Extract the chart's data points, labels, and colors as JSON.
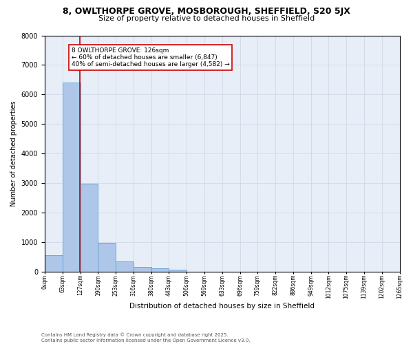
{
  "title1": "8, OWLTHORPE GROVE, MOSBOROUGH, SHEFFIELD, S20 5JX",
  "title2": "Size of property relative to detached houses in Sheffield",
  "xlabel": "Distribution of detached houses by size in Sheffield",
  "ylabel": "Number of detached properties",
  "bar_edges": [
    0,
    63,
    127,
    190,
    253,
    316,
    380,
    443,
    506,
    569,
    633,
    696,
    759,
    822,
    886,
    949,
    1012,
    1075,
    1139,
    1202,
    1265
  ],
  "bar_heights": [
    550,
    6400,
    2980,
    970,
    350,
    160,
    105,
    65,
    0,
    0,
    0,
    0,
    0,
    0,
    0,
    0,
    0,
    0,
    0,
    0
  ],
  "bar_color": "#aec6e8",
  "bar_edgecolor": "#5a9fd4",
  "property_size": 126,
  "vline_color": "#cc0000",
  "annotation_text": "8 OWLTHORPE GROVE: 126sqm\n← 60% of detached houses are smaller (6,847)\n40% of semi-detached houses are larger (4,582) →",
  "annotation_box_edgecolor": "#cc0000",
  "annotation_fontsize": 6.5,
  "ylim": [
    0,
    8000
  ],
  "yticks": [
    0,
    1000,
    2000,
    3000,
    4000,
    5000,
    6000,
    7000,
    8000
  ],
  "grid_color": "#d0d8e8",
  "bg_color": "#e8eef8",
  "footnote": "Contains HM Land Registry data © Crown copyright and database right 2025.\nContains public sector information licensed under the Open Government Licence v3.0.",
  "title1_fontsize": 9,
  "title2_fontsize": 8,
  "xlabel_fontsize": 7.5,
  "ylabel_fontsize": 7,
  "ytick_fontsize": 7,
  "xtick_fontsize": 5.5
}
